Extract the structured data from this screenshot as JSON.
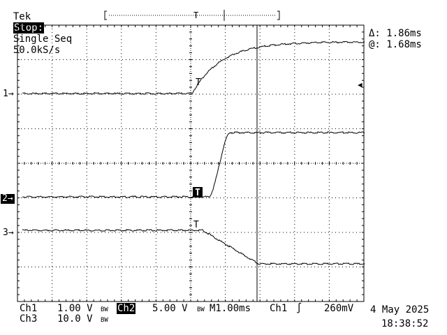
{
  "header": {
    "brand": "Tek",
    "state": "Stop:",
    "mode": "Single Seq",
    "rate": "50.0kS/s"
  },
  "cursor_readout": {
    "delta": "Δ: 1.86ms",
    "at": "@: 1.68ms"
  },
  "markers": {
    "ch1": "1→",
    "ch2": "2→",
    "ch3": "3→",
    "trigger_icon": "T",
    "trigger_level_icon": "◀"
  },
  "footer": {
    "ch1_label": "Ch1",
    "ch1_scale": "1.00 V",
    "ch2_label": "Ch2",
    "ch2_scale": "5.00 V",
    "ch3_label": "Ch3",
    "ch3_scale": "10.0 V",
    "bw_symbol": "BW",
    "timebase": "M1.00ms",
    "trig_source": "Ch1",
    "trig_slope": "∫",
    "trig_level": "260mV",
    "date": "4 May 2025",
    "time": "18:38:52"
  },
  "colors": {
    "background": "#ffffff",
    "foreground": "#000000"
  }
}
